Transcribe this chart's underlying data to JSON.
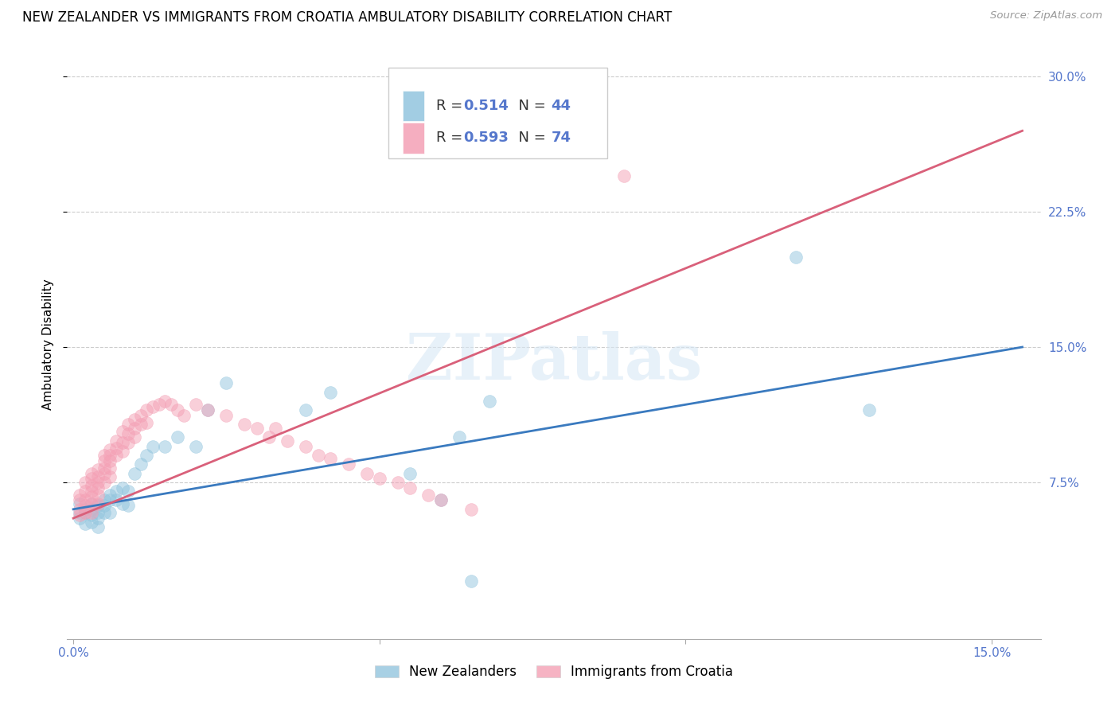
{
  "title": "NEW ZEALANDER VS IMMIGRANTS FROM CROATIA AMBULATORY DISABILITY CORRELATION CHART",
  "source": "Source: ZipAtlas.com",
  "ylabel_label": "Ambulatory Disability",
  "color_blue": "#92c5de",
  "color_pink": "#f4a0b5",
  "color_line_blue": "#3a7abf",
  "color_line_pink": "#d9607a",
  "watermark": "ZIPatlas",
  "legend_label1": "New Zealanders",
  "legend_label2": "Immigrants from Croatia",
  "legend_r1": "0.514",
  "legend_n1": "44",
  "legend_r2": "0.593",
  "legend_n2": "74",
  "tick_color": "#5577cc",
  "xlim": [
    -0.001,
    0.158
  ],
  "ylim": [
    -0.012,
    0.315
  ],
  "x_ticks": [
    0.0,
    0.05,
    0.1,
    0.15
  ],
  "x_tick_labels": [
    "0.0%",
    "",
    "",
    "15.0%"
  ],
  "y_ticks": [
    0.075,
    0.15,
    0.225,
    0.3
  ],
  "y_tick_labels": [
    "7.5%",
    "15.0%",
    "22.5%",
    "30.0%"
  ],
  "blue_x": [
    0.001,
    0.001,
    0.001,
    0.002,
    0.002,
    0.002,
    0.003,
    0.003,
    0.003,
    0.003,
    0.004,
    0.004,
    0.004,
    0.004,
    0.005,
    0.005,
    0.005,
    0.006,
    0.006,
    0.006,
    0.007,
    0.007,
    0.008,
    0.008,
    0.009,
    0.009,
    0.01,
    0.011,
    0.012,
    0.013,
    0.015,
    0.017,
    0.02,
    0.022,
    0.025,
    0.038,
    0.042,
    0.055,
    0.06,
    0.065,
    0.118,
    0.13,
    0.068,
    0.063
  ],
  "blue_y": [
    0.063,
    0.058,
    0.055,
    0.06,
    0.058,
    0.052,
    0.063,
    0.06,
    0.057,
    0.053,
    0.062,
    0.058,
    0.055,
    0.05,
    0.065,
    0.062,
    0.058,
    0.068,
    0.065,
    0.058,
    0.07,
    0.065,
    0.072,
    0.063,
    0.07,
    0.062,
    0.08,
    0.085,
    0.09,
    0.095,
    0.095,
    0.1,
    0.095,
    0.115,
    0.13,
    0.115,
    0.125,
    0.08,
    0.065,
    0.02,
    0.2,
    0.115,
    0.12,
    0.1
  ],
  "pink_x": [
    0.001,
    0.001,
    0.001,
    0.001,
    0.002,
    0.002,
    0.002,
    0.002,
    0.002,
    0.003,
    0.003,
    0.003,
    0.003,
    0.003,
    0.003,
    0.003,
    0.004,
    0.004,
    0.004,
    0.004,
    0.004,
    0.004,
    0.005,
    0.005,
    0.005,
    0.005,
    0.005,
    0.006,
    0.006,
    0.006,
    0.006,
    0.006,
    0.007,
    0.007,
    0.007,
    0.008,
    0.008,
    0.008,
    0.009,
    0.009,
    0.009,
    0.01,
    0.01,
    0.01,
    0.011,
    0.011,
    0.012,
    0.012,
    0.013,
    0.014,
    0.015,
    0.016,
    0.017,
    0.018,
    0.02,
    0.022,
    0.025,
    0.028,
    0.03,
    0.032,
    0.033,
    0.035,
    0.038,
    0.04,
    0.042,
    0.045,
    0.048,
    0.05,
    0.053,
    0.055,
    0.058,
    0.06,
    0.065,
    0.09
  ],
  "pink_y": [
    0.068,
    0.065,
    0.06,
    0.057,
    0.075,
    0.07,
    0.065,
    0.062,
    0.058,
    0.08,
    0.077,
    0.073,
    0.07,
    0.067,
    0.063,
    0.058,
    0.082,
    0.078,
    0.075,
    0.072,
    0.068,
    0.063,
    0.09,
    0.087,
    0.083,
    0.08,
    0.075,
    0.093,
    0.09,
    0.087,
    0.083,
    0.078,
    0.098,
    0.094,
    0.09,
    0.103,
    0.097,
    0.092,
    0.107,
    0.102,
    0.097,
    0.11,
    0.105,
    0.1,
    0.112,
    0.107,
    0.115,
    0.108,
    0.117,
    0.118,
    0.12,
    0.118,
    0.115,
    0.112,
    0.118,
    0.115,
    0.112,
    0.107,
    0.105,
    0.1,
    0.105,
    0.098,
    0.095,
    0.09,
    0.088,
    0.085,
    0.08,
    0.077,
    0.075,
    0.072,
    0.068,
    0.065,
    0.06,
    0.245
  ],
  "blue_line_x": [
    0.0,
    0.155
  ],
  "blue_line_y": [
    0.06,
    0.15
  ],
  "pink_line_x": [
    0.0,
    0.155
  ],
  "pink_line_y": [
    0.055,
    0.27
  ]
}
